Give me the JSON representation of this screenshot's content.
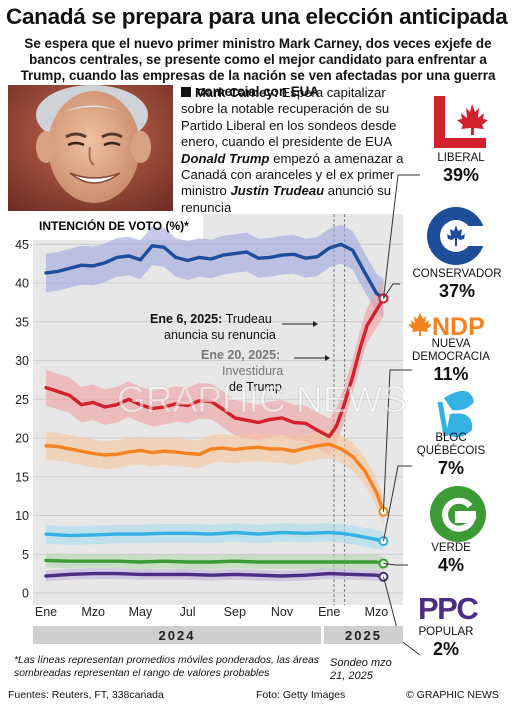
{
  "headline": "Canadá se prepara para una elección anticipada",
  "subhead": "Se espera que el nuevo primer ministro Mark Carney, dos veces exjefe de bancos centrales, se presente como el mejor candidato para enfrentar a Trump, cuando las empresas de la nación se ven afectadas por una guerra comercial con EUA",
  "blurb": {
    "name": "Mark Carney:",
    "part1": "Espera capitalizar sobre la notable recuperación de su Partido Liberal en los sondeos desde enero, cuando el presidente de EUA",
    "trump": "Donald Trump",
    "part2": "empezó a amenazar a Canadá con aranceles y el ex primer ministro",
    "trudeau": "Justin Trudeau",
    "part3": "anunció su renuncia"
  },
  "parties": [
    {
      "name": "LIBERAL",
      "pct": "39%",
      "color": "#d3202f",
      "icon": "liberal-maple-leaf-logo"
    },
    {
      "name": "CONSERVADOR",
      "pct": "37%",
      "color": "#1d4d9b",
      "icon": "conservative-c-logo"
    },
    {
      "name": "NUEVA DEMOCRACIA",
      "logo_text": "NDP",
      "pct": "11%",
      "color": "#f58220",
      "icon": "ndp-logo"
    },
    {
      "name": "BLOC QUÉBÉCOIS",
      "pct": "7%",
      "color": "#33b2e3",
      "icon": "bloc-logo"
    },
    {
      "name": "VERDE",
      "pct": "4%",
      "color": "#3d9b35",
      "icon": "green-g-logo"
    },
    {
      "name": "POPULAR",
      "logo_text": "PPC",
      "pct": "2%",
      "color": "#4b2e83",
      "icon": "ppc-logo"
    }
  ],
  "chart_data": {
    "type": "line",
    "title": "INTENCIÓN DE VOTO (%)*",
    "ylim": [
      0,
      47
    ],
    "yticks": [
      0,
      5,
      10,
      15,
      20,
      25,
      30,
      35,
      40,
      45
    ],
    "x_tick_labels": [
      "Ene",
      "Mzo",
      "May",
      "Jul",
      "Sep",
      "Nov",
      "Ene",
      "Mzo"
    ],
    "years": [
      "2024",
      "2025"
    ],
    "grid": true,
    "x_unit": "months since Jan 2024",
    "series": [
      {
        "name": "CONSERVADOR",
        "color": "#1d4d9b",
        "band": "#9fa5dd",
        "band_width": 2.5,
        "x": [
          0,
          0.5,
          1,
          1.5,
          2,
          2.5,
          3,
          3.5,
          4,
          4.5,
          5,
          5.5,
          6,
          6.5,
          7,
          7.5,
          8,
          8.5,
          9,
          9.5,
          10,
          10.5,
          11,
          11.5,
          12,
          12.5,
          13,
          13.5,
          14,
          14.3
        ],
        "y": [
          41.3,
          41.5,
          41.9,
          42.3,
          42.2,
          42.6,
          43.3,
          43.5,
          43.0,
          44.8,
          44.6,
          43.3,
          42.9,
          43.3,
          43.1,
          43.6,
          43.8,
          44.0,
          43.2,
          43.3,
          43.6,
          43.7,
          43.2,
          43.4,
          44.5,
          45.0,
          44.2,
          41.4,
          38.7,
          38.0
        ]
      },
      {
        "name": "LIBERAL",
        "color": "#d3202f",
        "band": "#f0a0a2",
        "band_width": 2.3,
        "x": [
          0,
          0.5,
          1,
          1.5,
          2,
          2.5,
          3,
          3.5,
          4,
          4.5,
          5,
          5.5,
          6,
          6.5,
          7,
          7.5,
          8,
          8.5,
          9,
          9.5,
          10,
          10.5,
          11,
          11.5,
          12,
          12.3,
          12.6,
          13,
          13.3,
          13.6,
          14,
          14.3
        ],
        "y": [
          26.5,
          26.0,
          25.5,
          24.3,
          24.6,
          24.0,
          24.3,
          25.0,
          24.3,
          23.8,
          24.0,
          24.4,
          24.2,
          24.8,
          24.7,
          23.7,
          22.6,
          22.3,
          22.0,
          22.4,
          22.6,
          22.0,
          21.9,
          21.0,
          20.2,
          21.5,
          24.0,
          28.0,
          31.5,
          34.5,
          36.5,
          38.0
        ]
      },
      {
        "name": "NUEVA DEMOCRACIA",
        "color": "#f58220",
        "band": "#f9c79c",
        "band_width": 1.8,
        "x": [
          0,
          0.5,
          1,
          1.5,
          2,
          2.5,
          3,
          3.5,
          4,
          4.5,
          5,
          5.5,
          6,
          6.5,
          7,
          7.5,
          8,
          8.5,
          9,
          9.5,
          10,
          10.5,
          11,
          11.5,
          12,
          12.5,
          13,
          13.5,
          14,
          14.3
        ],
        "y": [
          19.0,
          18.9,
          18.6,
          18.3,
          18.0,
          17.8,
          17.9,
          18.2,
          18.4,
          18.1,
          18.3,
          18.2,
          18.0,
          17.9,
          18.6,
          18.7,
          18.5,
          18.7,
          18.8,
          18.6,
          18.6,
          18.3,
          18.7,
          19.0,
          19.2,
          18.6,
          17.6,
          15.8,
          13.0,
          10.5
        ]
      },
      {
        "name": "BLOC QUÉBÉCOIS",
        "color": "#33b2e3",
        "band": "#a7dcf0",
        "band_width": 1.2,
        "x": [
          0,
          1,
          2,
          3,
          4,
          5,
          6,
          7,
          8,
          9,
          10,
          11,
          12,
          12.5,
          13,
          13.5,
          14,
          14.3
        ],
        "y": [
          7.6,
          7.4,
          7.5,
          7.6,
          7.6,
          7.7,
          7.7,
          7.6,
          7.8,
          7.6,
          7.8,
          7.7,
          7.8,
          7.7,
          7.5,
          7.2,
          6.9,
          6.7
        ]
      },
      {
        "name": "VERDE",
        "color": "#3d9b35",
        "band": "#b4d8ad",
        "band_width": 0.9,
        "x": [
          0,
          1,
          2,
          3,
          4,
          5,
          6,
          7,
          8,
          9,
          10,
          11,
          12,
          13,
          14,
          14.3
        ],
        "y": [
          4.2,
          4.1,
          4.1,
          4.1,
          4.0,
          4.1,
          4.0,
          4.0,
          4.1,
          4.0,
          4.0,
          4.0,
          4.0,
          4.0,
          4.0,
          3.8
        ]
      },
      {
        "name": "POPULAR",
        "color": "#4b2e83",
        "band": "#c1b4dc",
        "band_width": 0.7,
        "x": [
          0,
          1,
          2,
          3,
          4,
          5,
          6,
          7,
          8,
          9,
          10,
          11,
          12,
          13,
          14,
          14.3
        ],
        "y": [
          2.2,
          2.4,
          2.5,
          2.5,
          2.4,
          2.4,
          2.4,
          2.3,
          2.4,
          2.3,
          2.2,
          2.3,
          2.5,
          2.4,
          2.3,
          2.1
        ]
      }
    ],
    "annotations": [
      {
        "x": 12.2,
        "date": "Ene 6, 2025:",
        "text1": "Trudeau",
        "text2": "anuncia su renuncia"
      },
      {
        "x": 12.65,
        "date": "Ene 20, 2025:",
        "text1": "Investidura",
        "text2": "de Trump"
      }
    ]
  },
  "footnote": "*Las líneas representan promedios móviles ponderados, las áreas sombreadas representan el rango de valores probables",
  "poll_note": "Sondeo mzo 21, 2025",
  "sources": "Fuentes: Reuters, FT, 338canada",
  "photo_credit": "Foto: Getty Images",
  "credit": "© GRAPHIC NEWS",
  "watermark": "GRAPHIC NEWS"
}
